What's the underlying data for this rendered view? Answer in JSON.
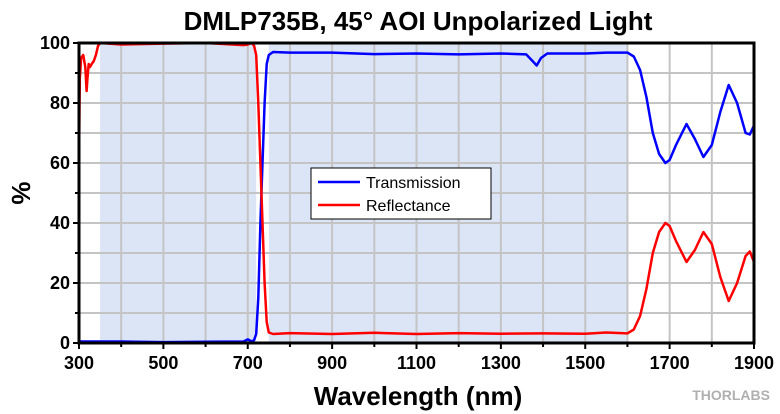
{
  "chart_data": {
    "type": "line",
    "title": "DMLP735B, 45° AOI Unpolarized Light",
    "xlabel": "Wavelength (nm)",
    "ylabel": "%",
    "xlim": [
      300,
      1900
    ],
    "ylim": [
      0,
      100
    ],
    "xticks": [
      300,
      500,
      700,
      900,
      1100,
      1300,
      1500,
      1700,
      1900
    ],
    "yticks": [
      0,
      20,
      40,
      60,
      80,
      100
    ],
    "grid": true,
    "legend_placement": "center",
    "shaded_regions": [
      [
        350,
        720
      ],
      [
        750,
        1600
      ]
    ],
    "series": [
      {
        "name": "Transmission",
        "color": "#0000ff",
        "x": [
          300,
          350,
          400,
          500,
          600,
          690,
          700,
          710,
          715,
          720,
          725,
          730,
          735,
          740,
          745,
          750,
          760,
          800,
          900,
          1000,
          1100,
          1200,
          1300,
          1360,
          1375,
          1385,
          1395,
          1410,
          1500,
          1550,
          1600,
          1615,
          1630,
          1645,
          1660,
          1675,
          1690,
          1700,
          1715,
          1740,
          1760,
          1780,
          1800,
          1820,
          1840,
          1860,
          1880,
          1890,
          1900
        ],
        "y": [
          0.5,
          0.5,
          0.5,
          0.3,
          0.4,
          0.5,
          1.2,
          0.5,
          1,
          3,
          15,
          40,
          60,
          80,
          93,
          96,
          97,
          96.8,
          96.8,
          96.3,
          96.5,
          96.2,
          96.5,
          96.2,
          94,
          92.5,
          95,
          96.5,
          96.5,
          96.8,
          96.8,
          95.5,
          91,
          82,
          70,
          63,
          60,
          61,
          66,
          73,
          68,
          62,
          66,
          77,
          86,
          80,
          70,
          69.5,
          72.5
        ]
      },
      {
        "name": "Reflectance",
        "color": "#ff0000",
        "x": [
          300,
          302,
          305,
          310,
          315,
          318,
          320,
          323,
          326,
          330,
          335,
          340,
          345,
          350,
          400,
          500,
          600,
          690,
          700,
          710,
          715,
          720,
          725,
          730,
          735,
          740,
          745,
          750,
          760,
          800,
          900,
          1000,
          1100,
          1200,
          1300,
          1400,
          1500,
          1550,
          1600,
          1615,
          1630,
          1645,
          1660,
          1675,
          1690,
          1700,
          1715,
          1740,
          1760,
          1780,
          1800,
          1820,
          1840,
          1860,
          1880,
          1890,
          1900
        ],
        "y": [
          60,
          88,
          95,
          96,
          92,
          84,
          88,
          93,
          92,
          93,
          94,
          96,
          99,
          100,
          99.5,
          99.8,
          100,
          99.3,
          99.5,
          100,
          99,
          96,
          80,
          60,
          40,
          20,
          7,
          3.5,
          3,
          3.3,
          3,
          3.4,
          3,
          3.3,
          3.1,
          3.2,
          3.1,
          3.5,
          3.2,
          4.5,
          9,
          18,
          30,
          37,
          40,
          39,
          34,
          27,
          31,
          37,
          33,
          22,
          14,
          20,
          29,
          30.5,
          27
        ]
      }
    ]
  },
  "watermark": "THORLABS"
}
